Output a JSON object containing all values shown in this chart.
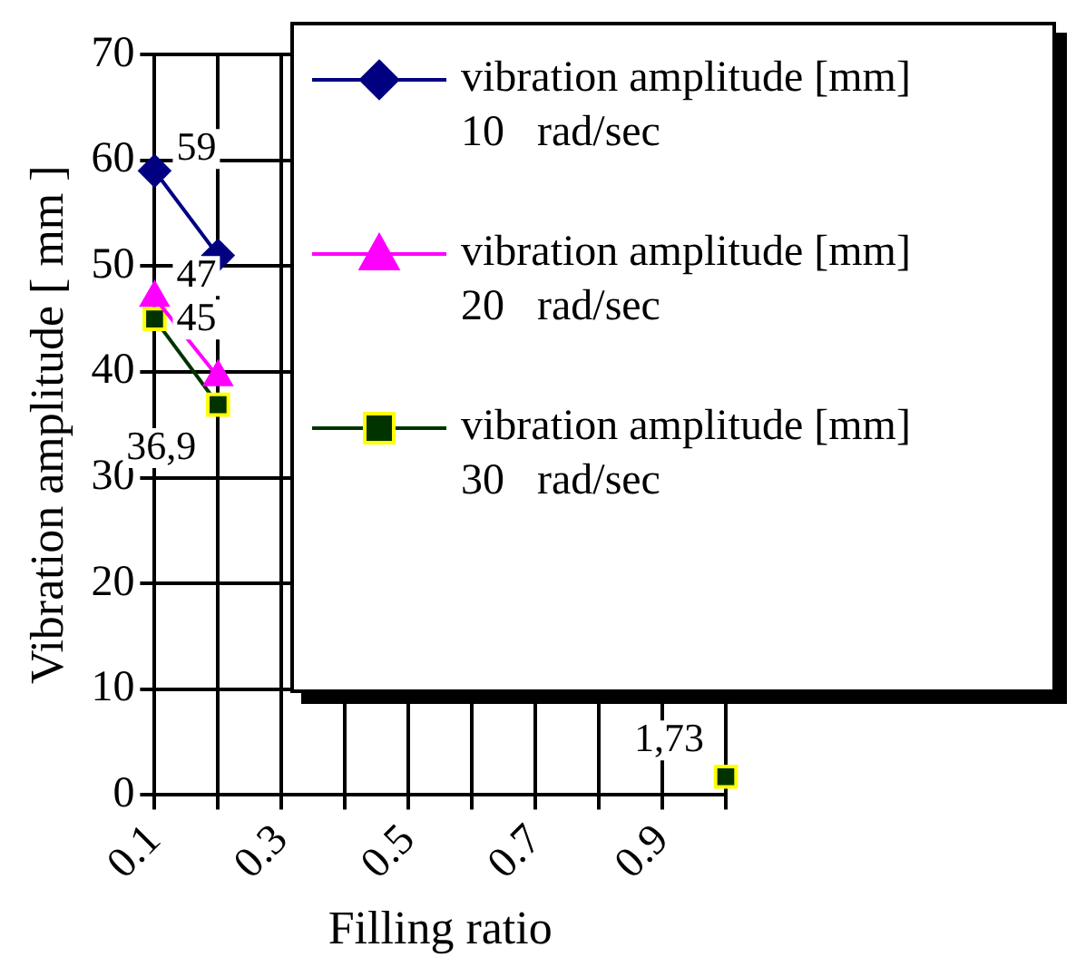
{
  "chart_data": {
    "type": "line",
    "xlabel": "Filling ratio",
    "ylabel": "Vibration amplitude [ mm ]",
    "categories": [
      "0.1",
      null,
      "0.3",
      null,
      "0.5",
      null,
      "0.7",
      null,
      "0.9",
      null
    ],
    "ylim": [
      0,
      70
    ],
    "yticks": [
      0,
      10,
      20,
      30,
      40,
      50,
      60,
      70
    ],
    "grid": true,
    "legend": "top right",
    "series": [
      {
        "name": "vibration amplitude [mm] 10   rad/sec",
        "color": "#000080",
        "marker": "diamond",
        "values": [
          59,
          51,
          null,
          null,
          null,
          null,
          null,
          null,
          null,
          null
        ],
        "value_labels": [
          "59",
          null,
          null,
          null,
          null,
          null,
          null,
          null,
          null,
          null
        ]
      },
      {
        "name": "vibration amplitude [mm] 20   rad/sec",
        "color": "#ff00ff",
        "marker": "triangle",
        "values": [
          47,
          39.5,
          null,
          null,
          null,
          null,
          null,
          null,
          null,
          null
        ],
        "value_labels": [
          "47",
          null,
          null,
          null,
          null,
          null,
          null,
          null,
          null,
          null
        ]
      },
      {
        "name": "vibration amplitude [mm] 30   rad/sec",
        "color": "#003300",
        "marker": "square",
        "values": [
          45,
          36.9,
          null,
          null,
          null,
          null,
          null,
          null,
          null,
          1.73
        ],
        "value_labels": [
          "45",
          "36,9",
          null,
          null,
          null,
          null,
          null,
          null,
          null,
          "1,73"
        ]
      }
    ]
  }
}
